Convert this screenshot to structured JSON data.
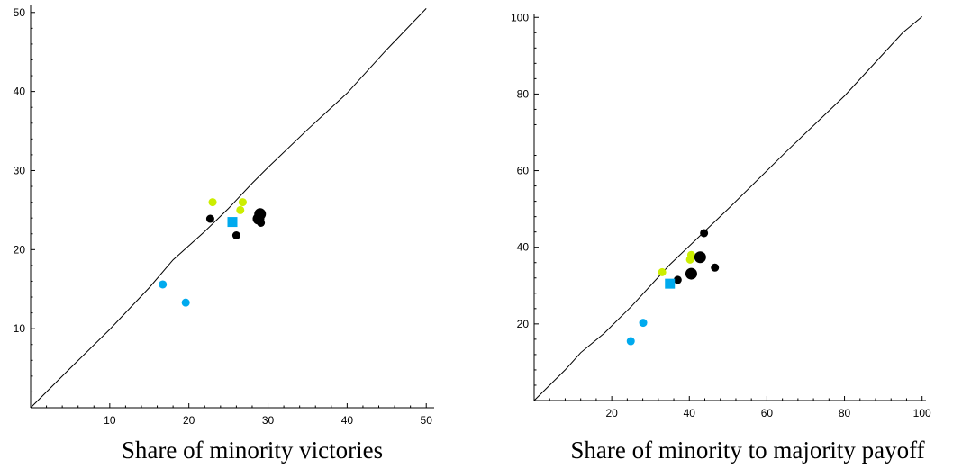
{
  "chart_data": [
    {
      "type": "scatter",
      "title": "Share of minority victories",
      "xlabel": "",
      "ylabel": "",
      "xlim": [
        0,
        51
      ],
      "ylim": [
        0,
        51
      ],
      "x_ticks": [
        10,
        20,
        30,
        40,
        50
      ],
      "y_ticks": [
        10,
        20,
        30,
        40,
        50
      ],
      "grid": false,
      "reference_line": [
        [
          0,
          0
        ],
        [
          5,
          5
        ],
        [
          10,
          9.9
        ],
        [
          15,
          15.2
        ],
        [
          18,
          18.7
        ],
        [
          22,
          22.3
        ],
        [
          25,
          25.2
        ],
        [
          28,
          28.4
        ],
        [
          30,
          30.4
        ],
        [
          35,
          35.2
        ],
        [
          40,
          39.8
        ],
        [
          45,
          45.3
        ],
        [
          50,
          50.5
        ]
      ],
      "series": [
        {
          "color": "#ccee00",
          "marker": "circle",
          "size": "small",
          "points": [
            [
              23,
              26
            ],
            [
              26.8,
              26
            ],
            [
              26.5,
              25
            ]
          ]
        },
        {
          "color": "#000000",
          "marker": "circle",
          "size": "small",
          "points": [
            [
              22.7,
              23.9
            ],
            [
              26,
              21.8
            ],
            [
              29.1,
              23.4
            ]
          ]
        },
        {
          "color": "#000000",
          "marker": "circle",
          "size": "large",
          "points": [
            [
              29,
              24.5
            ],
            [
              28.8,
              23.9
            ]
          ]
        },
        {
          "color": "#00aaee",
          "marker": "circle",
          "size": "small",
          "points": [
            [
              16.7,
              15.6
            ],
            [
              19.6,
              13.3
            ]
          ]
        },
        {
          "color": "#00aaee",
          "marker": "square",
          "size": "small",
          "points": [
            [
              25.5,
              23.5
            ]
          ]
        }
      ]
    },
    {
      "type": "scatter",
      "title": "Share of minority to majority payoff",
      "xlabel": "",
      "ylabel": "",
      "xlim": [
        0,
        101
      ],
      "ylim": [
        0,
        101
      ],
      "x_ticks": [
        20,
        40,
        60,
        80,
        100
      ],
      "y_ticks": [
        20,
        40,
        60,
        80,
        100
      ],
      "grid": false,
      "reference_line": [
        [
          0,
          0
        ],
        [
          8,
          8
        ],
        [
          12,
          12.5
        ],
        [
          18,
          17.5
        ],
        [
          25,
          24.5
        ],
        [
          35,
          35.5
        ],
        [
          50,
          50
        ],
        [
          65,
          65
        ],
        [
          80,
          79.5
        ],
        [
          95,
          96
        ],
        [
          100,
          100.2
        ]
      ],
      "series": [
        {
          "color": "#ccee00",
          "marker": "circle",
          "size": "small",
          "points": [
            [
              33,
              33.5
            ],
            [
              40.5,
              38
            ],
            [
              40.2,
              36.8
            ]
          ]
        },
        {
          "color": "#000000",
          "marker": "circle",
          "size": "small",
          "points": [
            [
              37,
              31.5
            ],
            [
              43.8,
              43.7
            ],
            [
              46.6,
              34.7
            ]
          ]
        },
        {
          "color": "#000000",
          "marker": "circle",
          "size": "large",
          "points": [
            [
              40.5,
              33.1
            ],
            [
              42.8,
              37.4
            ]
          ]
        },
        {
          "color": "#00aaee",
          "marker": "circle",
          "size": "small",
          "points": [
            [
              24.9,
              15.5
            ],
            [
              28.1,
              20.3
            ]
          ]
        },
        {
          "color": "#00aaee",
          "marker": "square",
          "size": "small",
          "points": [
            [
              35,
              30.5
            ]
          ]
        }
      ]
    }
  ]
}
